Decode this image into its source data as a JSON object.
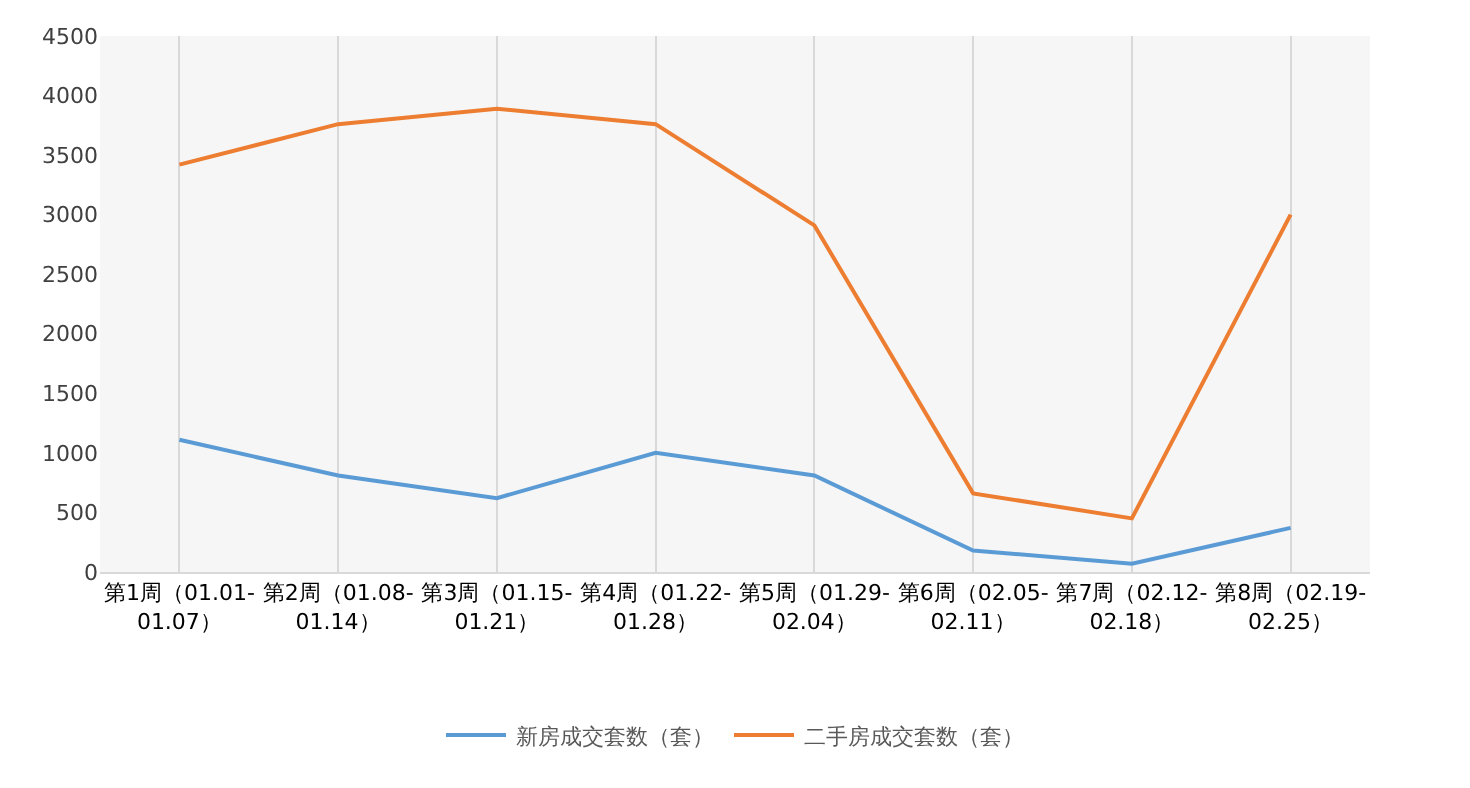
{
  "chart_data": {
    "type": "line",
    "categories": [
      "第1周（01.01-01.07）",
      "第2周（01.08-01.14）",
      "第3周（01.15-01.21）",
      "第4周（01.22-01.28）",
      "第5周（01.29-02.04）",
      "第6周（02.05-02.11）",
      "第7周（02.12-02.18）",
      "第8周（02.19-02.25）"
    ],
    "series": [
      {
        "name": "新房成交套数（套）",
        "color": "#5b9bd5",
        "values": [
          1110,
          810,
          620,
          1000,
          810,
          180,
          70,
          370
        ]
      },
      {
        "name": "二手房成交套数（套）",
        "color": "#ed7d31",
        "values": [
          3420,
          3760,
          3890,
          3760,
          2910,
          660,
          450,
          3000
        ]
      }
    ],
    "ylim": [
      0,
      4500
    ],
    "yticks": [
      0,
      500,
      1000,
      1500,
      2000,
      2500,
      3000,
      3500,
      4000,
      4500
    ],
    "grid": "x",
    "legend": "bottom",
    "marker": "none",
    "line_style": "solid"
  }
}
